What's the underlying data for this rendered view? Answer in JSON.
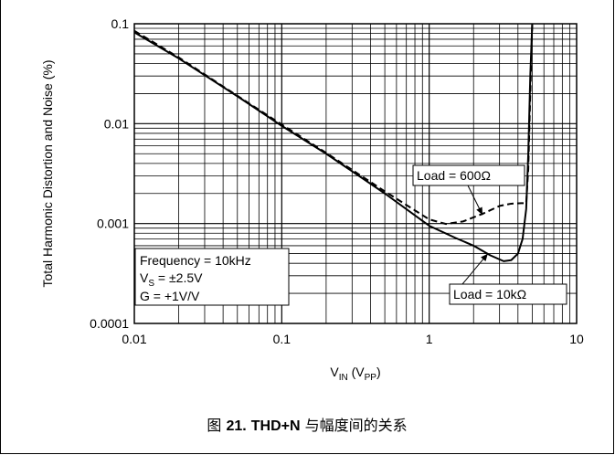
{
  "caption": {
    "prefix": "图",
    "number": "21.",
    "bold_text": "THD+N",
    "suffix": "与幅度间的关系"
  },
  "chart_data": {
    "type": "line",
    "xlabel": {
      "main": "V",
      "main_sub": "IN",
      "unit_open": " (V",
      "unit_sub": "PP",
      "unit_close": ")"
    },
    "ylabel": "Total Harmonic Distortion and Noise (%)",
    "x_scale": "log",
    "y_scale": "log",
    "xlim": [
      0.01,
      10
    ],
    "ylim": [
      0.0001,
      0.1
    ],
    "grid": true,
    "x_ticks": [
      {
        "value": 0.01,
        "label": "0.01"
      },
      {
        "value": 0.1,
        "label": "0.1"
      },
      {
        "value": 1,
        "label": "1"
      },
      {
        "value": 10,
        "label": "10"
      }
    ],
    "y_ticks": [
      {
        "value": 0.1,
        "label": "0.1"
      },
      {
        "value": 0.01,
        "label": "0.01"
      },
      {
        "value": 0.001,
        "label": "0.001"
      },
      {
        "value": 0.0001,
        "label": "0.0001"
      }
    ],
    "conditions_box": {
      "line1": "Frequency = 10kHz",
      "line2_main": "V",
      "line2_sub": "S",
      "line2_rest": " = ±2.5V",
      "line3": "G = +1V/V"
    },
    "series": [
      {
        "name": "Load = 600Ω",
        "style": "dashed",
        "color": "#000000",
        "points": [
          [
            0.01,
            0.085
          ],
          [
            0.02,
            0.046
          ],
          [
            0.05,
            0.019
          ],
          [
            0.1,
            0.0098
          ],
          [
            0.2,
            0.0051
          ],
          [
            0.5,
            0.0021
          ],
          [
            1.0,
            0.0011
          ],
          [
            1.3,
            0.00099
          ],
          [
            1.7,
            0.00105
          ],
          [
            2.3,
            0.00125
          ],
          [
            3.0,
            0.0015
          ],
          [
            3.6,
            0.00158
          ],
          [
            4.2,
            0.0016
          ],
          [
            4.55,
            0.0016
          ],
          [
            4.7,
            0.0035
          ],
          [
            4.85,
            0.02
          ],
          [
            5.0,
            0.1
          ]
        ]
      },
      {
        "name": "Load = 10kΩ",
        "style": "solid",
        "color": "#000000",
        "points": [
          [
            0.01,
            0.082
          ],
          [
            0.02,
            0.045
          ],
          [
            0.05,
            0.0188
          ],
          [
            0.1,
            0.0095
          ],
          [
            0.2,
            0.005
          ],
          [
            0.5,
            0.002
          ],
          [
            1.0,
            0.00095
          ],
          [
            1.5,
            0.00072
          ],
          [
            2.0,
            0.0006
          ],
          [
            2.6,
            0.00048
          ],
          [
            3.2,
            0.00042
          ],
          [
            3.6,
            0.00043
          ],
          [
            4.0,
            0.0005
          ],
          [
            4.3,
            0.0007
          ],
          [
            4.55,
            0.0014
          ],
          [
            4.7,
            0.005
          ],
          [
            4.85,
            0.03
          ],
          [
            5.0,
            0.1
          ]
        ]
      }
    ],
    "annotations": [
      {
        "text": "Load = 600Ω",
        "series": "Load = 600Ω"
      },
      {
        "text": "Load = 10kΩ",
        "series": "Load = 10kΩ"
      }
    ]
  }
}
